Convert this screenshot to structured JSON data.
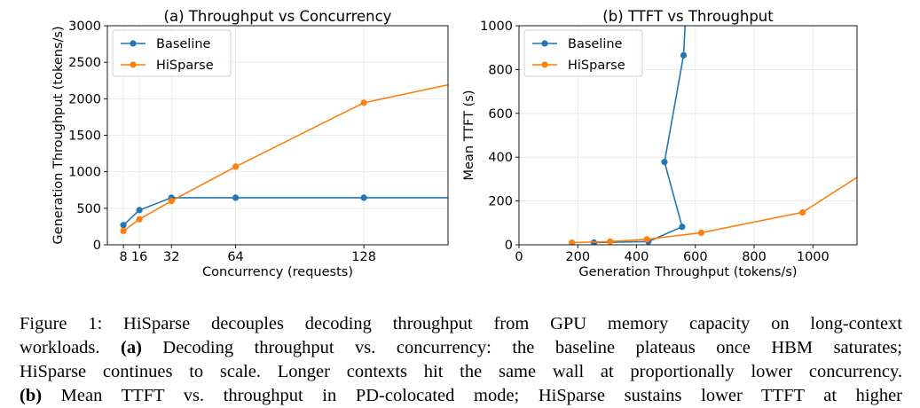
{
  "chart_data": [
    {
      "type": "line",
      "title": "(a) Throughput vs Concurrency",
      "xlabel": "Concurrency (requests)",
      "ylabel": "Generation Throughput (tokens/s)",
      "xlim": [
        0,
        170
      ],
      "ylim": [
        0,
        3000
      ],
      "xticks": [
        8,
        16,
        32,
        64,
        128
      ],
      "yticks": [
        0,
        500,
        1000,
        1500,
        2000,
        2500,
        3000
      ],
      "grid": true,
      "legend": "top-left",
      "series": [
        {
          "name": "Baseline",
          "color": "#1f77b4",
          "x": [
            8,
            16,
            32,
            64,
            128,
            170
          ],
          "y": [
            270,
            475,
            645,
            645,
            645,
            645
          ],
          "markers": [
            0,
            1,
            2,
            3,
            4
          ]
        },
        {
          "name": "HiSparse",
          "color": "#ff7f0e",
          "x": [
            8,
            16,
            32,
            64,
            128,
            170
          ],
          "y": [
            190,
            350,
            600,
            1070,
            1945,
            2190
          ],
          "markers": [
            0,
            1,
            2,
            3,
            4
          ]
        }
      ]
    },
    {
      "type": "line",
      "title": "(b) TTFT vs Throughput",
      "xlabel": "Generation Throughput (tokens/s)",
      "ylabel": "Mean TTFT (s)",
      "xlim": [
        0,
        1150
      ],
      "ylim": [
        0,
        1000
      ],
      "xticks": [
        0,
        200,
        400,
        600,
        800,
        1000
      ],
      "yticks": [
        0,
        200,
        400,
        600,
        800,
        1000
      ],
      "grid": true,
      "legend": "top-left",
      "series": [
        {
          "name": "Baseline",
          "color": "#1f77b4",
          "x": [
            255,
            440,
            555,
            495,
            560,
            565
          ],
          "y": [
            10,
            15,
            82,
            378,
            865,
            1000
          ],
          "markers": [
            0,
            1,
            2,
            3,
            4
          ]
        },
        {
          "name": "HiSparse",
          "color": "#ff7f0e",
          "x": [
            180,
            310,
            435,
            620,
            965,
            1150
          ],
          "y": [
            10,
            15,
            25,
            55,
            148,
            308
          ],
          "markers": [
            0,
            1,
            2,
            3,
            4
          ]
        }
      ]
    }
  ],
  "caption": {
    "lines": [
      {
        "parts": [
          {
            "t": "Figure 1: HiSparse decouples decoding throughput from GPU memory capacity on long-context"
          }
        ]
      },
      {
        "parts": [
          {
            "t": "workloads. "
          },
          {
            "t": "(a)",
            "b": true
          },
          {
            "t": " Decoding throughput vs. concurrency: the baseline plateaus once HBM saturates;"
          }
        ]
      },
      {
        "parts": [
          {
            "t": "HiSparse continues to scale. Longer contexts hit the same wall at proportionally lower concurrency."
          }
        ]
      },
      {
        "parts": [
          {
            "t": "(b)",
            "b": true
          },
          {
            "t": " Mean TTFT vs. throughput in PD-colocated mode; HiSparse sustains lower TTFT at higher"
          }
        ]
      }
    ]
  }
}
